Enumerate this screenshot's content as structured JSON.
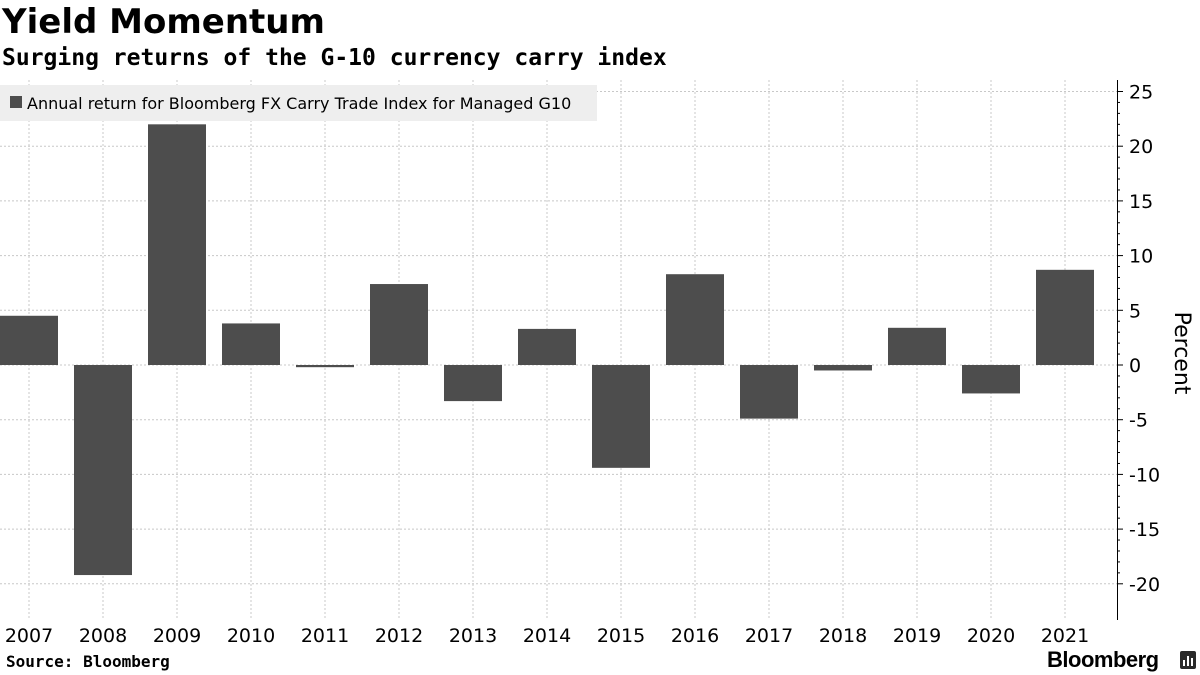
{
  "header": {
    "title": "Yield Momentum",
    "subtitle": "Surging returns of the G-10 currency carry index"
  },
  "footer": {
    "source": "Source: Bloomberg",
    "brand": "Bloomberg",
    "brand_icon": "bar-chart-icon"
  },
  "colors": {
    "bar": "#4d4d4d",
    "legend_bg": "#eeeeee",
    "grid": "#c8c8c8"
  },
  "chart_data": {
    "type": "bar",
    "categories": [
      "2007",
      "2008",
      "2009",
      "2010",
      "2011",
      "2012",
      "2013",
      "2014",
      "2015",
      "2016",
      "2017",
      "2018",
      "2019",
      "2020",
      "2021"
    ],
    "series": [
      {
        "name": "Annual return for Bloomberg FX Carry Trade Index for Managed G10",
        "values": [
          4.5,
          -19.2,
          22.0,
          3.8,
          -0.2,
          7.4,
          -3.3,
          3.3,
          -9.4,
          8.3,
          -4.9,
          -0.5,
          3.4,
          -2.6,
          8.7
        ]
      }
    ],
    "ylabel": "Percent",
    "ylim": [
      -22,
      26
    ],
    "yticks": [
      25,
      20,
      15,
      10,
      5,
      0,
      -5,
      -10,
      -15,
      -20
    ],
    "ytick_labels": [
      "25",
      "20",
      "15",
      "10",
      "5",
      "0",
      "-5",
      "-10",
      "-15",
      "-20"
    ],
    "grid": true,
    "y_axis_side": "right",
    "legend_position": "top-left"
  }
}
